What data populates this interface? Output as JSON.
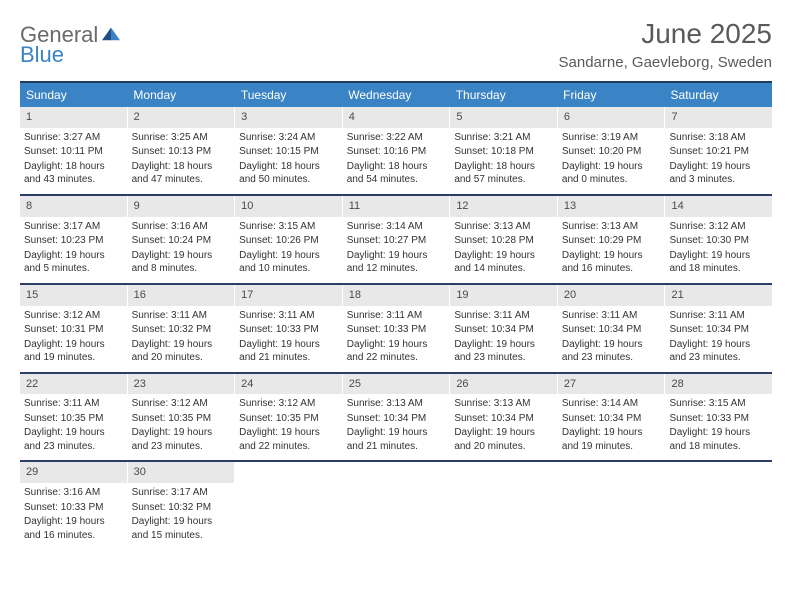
{
  "logo": {
    "general": "General",
    "blue": "Blue"
  },
  "title": "June 2025",
  "location": "Sandarne, Gaevleborg, Sweden",
  "colors": {
    "header_bar": "#3a84c5",
    "top_border": "#1f3a5f",
    "week_border": "#2c3e66",
    "daynum_bg": "#e8e8e8",
    "text": "#333333",
    "title_text": "#5a5a5a"
  },
  "weekdays": [
    "Sunday",
    "Monday",
    "Tuesday",
    "Wednesday",
    "Thursday",
    "Friday",
    "Saturday"
  ],
  "weeks": [
    [
      {
        "n": 1,
        "sr": "3:27 AM",
        "ss": "10:11 PM",
        "dl": "18 hours and 43 minutes."
      },
      {
        "n": 2,
        "sr": "3:25 AM",
        "ss": "10:13 PM",
        "dl": "18 hours and 47 minutes."
      },
      {
        "n": 3,
        "sr": "3:24 AM",
        "ss": "10:15 PM",
        "dl": "18 hours and 50 minutes."
      },
      {
        "n": 4,
        "sr": "3:22 AM",
        "ss": "10:16 PM",
        "dl": "18 hours and 54 minutes."
      },
      {
        "n": 5,
        "sr": "3:21 AM",
        "ss": "10:18 PM",
        "dl": "18 hours and 57 minutes."
      },
      {
        "n": 6,
        "sr": "3:19 AM",
        "ss": "10:20 PM",
        "dl": "19 hours and 0 minutes."
      },
      {
        "n": 7,
        "sr": "3:18 AM",
        "ss": "10:21 PM",
        "dl": "19 hours and 3 minutes."
      }
    ],
    [
      {
        "n": 8,
        "sr": "3:17 AM",
        "ss": "10:23 PM",
        "dl": "19 hours and 5 minutes."
      },
      {
        "n": 9,
        "sr": "3:16 AM",
        "ss": "10:24 PM",
        "dl": "19 hours and 8 minutes."
      },
      {
        "n": 10,
        "sr": "3:15 AM",
        "ss": "10:26 PM",
        "dl": "19 hours and 10 minutes."
      },
      {
        "n": 11,
        "sr": "3:14 AM",
        "ss": "10:27 PM",
        "dl": "19 hours and 12 minutes."
      },
      {
        "n": 12,
        "sr": "3:13 AM",
        "ss": "10:28 PM",
        "dl": "19 hours and 14 minutes."
      },
      {
        "n": 13,
        "sr": "3:13 AM",
        "ss": "10:29 PM",
        "dl": "19 hours and 16 minutes."
      },
      {
        "n": 14,
        "sr": "3:12 AM",
        "ss": "10:30 PM",
        "dl": "19 hours and 18 minutes."
      }
    ],
    [
      {
        "n": 15,
        "sr": "3:12 AM",
        "ss": "10:31 PM",
        "dl": "19 hours and 19 minutes."
      },
      {
        "n": 16,
        "sr": "3:11 AM",
        "ss": "10:32 PM",
        "dl": "19 hours and 20 minutes."
      },
      {
        "n": 17,
        "sr": "3:11 AM",
        "ss": "10:33 PM",
        "dl": "19 hours and 21 minutes."
      },
      {
        "n": 18,
        "sr": "3:11 AM",
        "ss": "10:33 PM",
        "dl": "19 hours and 22 minutes."
      },
      {
        "n": 19,
        "sr": "3:11 AM",
        "ss": "10:34 PM",
        "dl": "19 hours and 23 minutes."
      },
      {
        "n": 20,
        "sr": "3:11 AM",
        "ss": "10:34 PM",
        "dl": "19 hours and 23 minutes."
      },
      {
        "n": 21,
        "sr": "3:11 AM",
        "ss": "10:34 PM",
        "dl": "19 hours and 23 minutes."
      }
    ],
    [
      {
        "n": 22,
        "sr": "3:11 AM",
        "ss": "10:35 PM",
        "dl": "19 hours and 23 minutes."
      },
      {
        "n": 23,
        "sr": "3:12 AM",
        "ss": "10:35 PM",
        "dl": "19 hours and 23 minutes."
      },
      {
        "n": 24,
        "sr": "3:12 AM",
        "ss": "10:35 PM",
        "dl": "19 hours and 22 minutes."
      },
      {
        "n": 25,
        "sr": "3:13 AM",
        "ss": "10:34 PM",
        "dl": "19 hours and 21 minutes."
      },
      {
        "n": 26,
        "sr": "3:13 AM",
        "ss": "10:34 PM",
        "dl": "19 hours and 20 minutes."
      },
      {
        "n": 27,
        "sr": "3:14 AM",
        "ss": "10:34 PM",
        "dl": "19 hours and 19 minutes."
      },
      {
        "n": 28,
        "sr": "3:15 AM",
        "ss": "10:33 PM",
        "dl": "19 hours and 18 minutes."
      }
    ],
    [
      {
        "n": 29,
        "sr": "3:16 AM",
        "ss": "10:33 PM",
        "dl": "19 hours and 16 minutes."
      },
      {
        "n": 30,
        "sr": "3:17 AM",
        "ss": "10:32 PM",
        "dl": "19 hours and 15 minutes."
      },
      null,
      null,
      null,
      null,
      null
    ]
  ],
  "labels": {
    "sunrise": "Sunrise:",
    "sunset": "Sunset:",
    "daylight": "Daylight:"
  }
}
